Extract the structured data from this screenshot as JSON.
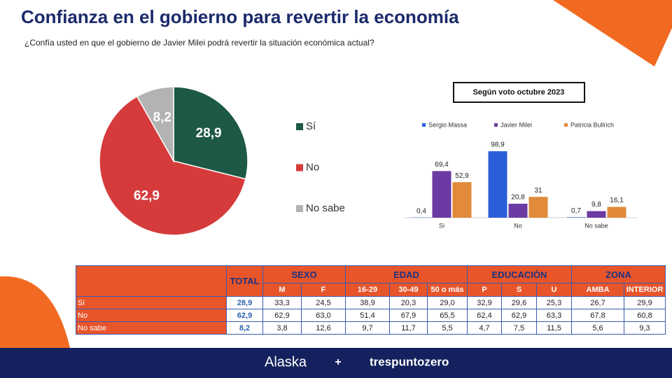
{
  "header": {
    "title": "Confianza en el gobierno para revertir la economía",
    "subtitle": "¿Confía usted en que el gobierno de Javier Milei podrá revertir la situación económica actual?"
  },
  "chart_data": [
    {
      "type": "pie",
      "categories": [
        "Sí",
        "No",
        "No sabe"
      ],
      "values": [
        28.9,
        62.9,
        8.2
      ],
      "value_labels": [
        "28,9",
        "62,9",
        "8,2"
      ],
      "colors": [
        "#1d5944",
        "#d63b3b",
        "#b3b3b3"
      ],
      "legend": "right"
    },
    {
      "type": "bar",
      "title": "Según voto octubre 2023",
      "categories": [
        "Si",
        "No",
        "No sabe"
      ],
      "legend": "top",
      "series": [
        {
          "name": "Sergio Massa",
          "color": "#2b5fd9",
          "values": [
            0.4,
            98.9,
            0.7
          ],
          "value_labels": [
            "0,4",
            "98,9",
            "0,7"
          ]
        },
        {
          "name": "Javier Milei",
          "color": "#6b3aa3",
          "values": [
            69.4,
            20.8,
            9.8
          ],
          "value_labels": [
            "69,4",
            "20,8",
            "9,8"
          ]
        },
        {
          "name": "Patricia Bullrich",
          "color": "#e08a3a",
          "values": [
            52.9,
            31,
            16.1
          ],
          "value_labels": [
            "52,9",
            "31",
            "16,1"
          ]
        }
      ]
    }
  ],
  "table": {
    "total_header": "TOTAL",
    "groups": [
      {
        "label": "SEXO",
        "columns": [
          "M",
          "F"
        ]
      },
      {
        "label": "EDAD",
        "columns": [
          "16-29",
          "30-49",
          "50 o más"
        ]
      },
      {
        "label": "EDUCACIÓN",
        "columns": [
          "P",
          "S",
          "U"
        ]
      },
      {
        "label": "ZONA",
        "columns": [
          "AMBA",
          "INTERIOR"
        ]
      }
    ],
    "rows": [
      [
        "Si",
        "28,9",
        "33,3",
        "24,5",
        "38,9",
        "20,3",
        "29,0",
        "32,9",
        "29,6",
        "25,3",
        "26,7",
        "29,9"
      ],
      [
        "No",
        "62,9",
        "62,9",
        "63,0",
        "51,4",
        "67,9",
        "65,5",
        "62,4",
        "62,9",
        "63,3",
        "67,8",
        "60,8"
      ],
      [
        "No sabe",
        "8,2",
        "3,8",
        "12,6",
        "9,7",
        "11,7",
        "5,5",
        "4,7",
        "7,5",
        "11,5",
        "5,6",
        "9,3"
      ]
    ]
  },
  "footer": {
    "left": "Alaska",
    "plus": "+",
    "right": "trespuntozero"
  }
}
